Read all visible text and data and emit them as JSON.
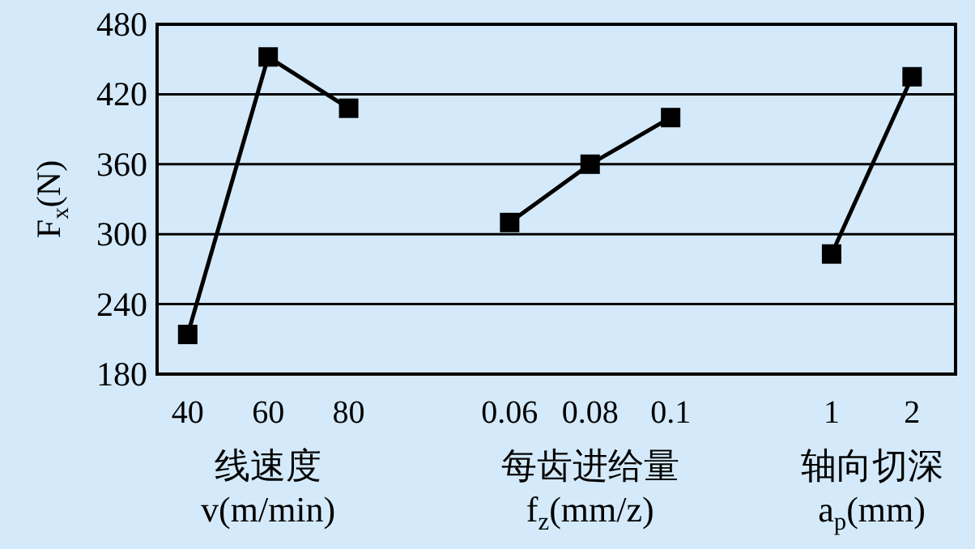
{
  "chart_data": {
    "type": "line",
    "ylabel": "F$_{x}$(N)",
    "categories": [
      "40",
      "60",
      "80",
      null,
      "0.06",
      "0.08",
      "0.1",
      null,
      "1",
      "2"
    ],
    "series": [
      {
        "color": "#000000",
        "values": [
          214,
          452,
          408,
          null,
          null,
          null,
          null,
          null,
          null,
          null
        ]
      },
      {
        "color": "#000000",
        "values": [
          null,
          null,
          null,
          null,
          310,
          360,
          400,
          null,
          null,
          null
        ]
      },
      {
        "color": "#000000",
        "values": [
          null,
          null,
          null,
          null,
          null,
          null,
          null,
          null,
          283,
          435
        ]
      }
    ],
    "annotations": [
      "线速度\nv(m/min)",
      "每齿进给量\nf$_{z}$(mm/z)",
      "轴向切深\na$_{p}$(mm)"
    ],
    "ylim": [
      180,
      480
    ],
    "yticks": [
      180,
      240,
      300,
      360,
      420,
      480
    ],
    "grid": "y",
    "marker": "square",
    "line_style": "solid"
  }
}
